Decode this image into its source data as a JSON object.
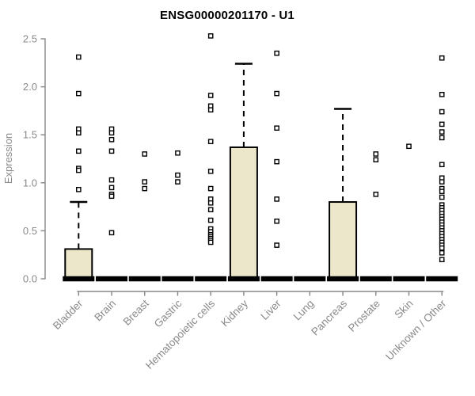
{
  "chart_data": {
    "type": "boxplot",
    "title": "ENSG00000201170 - U1",
    "ylabel": "Expression",
    "xlabel": "",
    "ylim": [
      0,
      2.5
    ],
    "yticks": [
      "0.0",
      "0.5",
      "1.0",
      "1.5",
      "2.0",
      "2.5"
    ],
    "grid": false,
    "legend": "none",
    "categories": [
      "Bladder",
      "Brain",
      "Breast",
      "Gastric",
      "Hematopoietic cells",
      "Kidney",
      "Liver",
      "Lung",
      "Pancreas",
      "Prostate",
      "Skin",
      "Unknown / Other"
    ],
    "boxes": [
      {
        "category": "Bladder",
        "q1": 0,
        "median": 0,
        "q3": 0.31,
        "whisker_low": 0,
        "whisker_high": 0.8,
        "outliers": [
          2.31,
          1.93,
          1.56,
          1.52,
          1.33,
          1.15,
          1.13,
          0.93
        ]
      },
      {
        "category": "Brain",
        "q1": 0,
        "median": 0,
        "q3": 0,
        "whisker_low": 0,
        "whisker_high": 0,
        "outliers": [
          1.56,
          1.52,
          1.45,
          1.33,
          1.03,
          0.95,
          0.88,
          0.86,
          0.48
        ]
      },
      {
        "category": "Breast",
        "q1": 0,
        "median": 0,
        "q3": 0,
        "whisker_low": 0,
        "whisker_high": 0,
        "outliers": [
          1.3,
          1.01,
          0.94
        ]
      },
      {
        "category": "Gastric",
        "q1": 0,
        "median": 0,
        "q3": 0,
        "whisker_low": 0,
        "whisker_high": 0,
        "outliers": [
          1.31,
          1.08,
          1.01
        ]
      },
      {
        "category": "Hematopoietic cells",
        "q1": 0,
        "median": 0,
        "q3": 0,
        "whisker_low": 0,
        "whisker_high": 0,
        "outliers": [
          2.53,
          1.91,
          1.8,
          1.76,
          1.43,
          1.12,
          0.94,
          0.83,
          0.79,
          0.72,
          0.61,
          0.52,
          0.49,
          0.46,
          0.44,
          0.42,
          0.4,
          0.38
        ]
      },
      {
        "category": "Kidney",
        "q1": 0,
        "median": 0,
        "q3": 1.37,
        "whisker_low": 0,
        "whisker_high": 2.24,
        "outliers": []
      },
      {
        "category": "Liver",
        "q1": 0,
        "median": 0,
        "q3": 0,
        "whisker_low": 0,
        "whisker_high": 0,
        "outliers": [
          2.35,
          1.93,
          1.57,
          1.22,
          0.83,
          0.6,
          0.35
        ]
      },
      {
        "category": "Lung",
        "q1": 0,
        "median": 0,
        "q3": 0,
        "whisker_low": 0,
        "whisker_high": 0,
        "outliers": []
      },
      {
        "category": "Pancreas",
        "q1": 0,
        "median": 0,
        "q3": 0.8,
        "whisker_low": 0,
        "whisker_high": 1.77,
        "outliers": []
      },
      {
        "category": "Prostate",
        "q1": 0,
        "median": 0,
        "q3": 0,
        "whisker_low": 0,
        "whisker_high": 0,
        "outliers": [
          1.3,
          1.24,
          0.88
        ]
      },
      {
        "category": "Skin",
        "q1": 0,
        "median": 0,
        "q3": 0,
        "whisker_low": 0,
        "whisker_high": 0,
        "outliers": [
          1.38
        ]
      },
      {
        "category": "Unknown / Other",
        "q1": 0,
        "median": 0,
        "q3": 0,
        "whisker_low": 0,
        "whisker_high": 0,
        "outliers": [
          2.3,
          1.92,
          1.74,
          1.61,
          1.53,
          1.47,
          1.19,
          1.05,
          1.01,
          0.94,
          0.91,
          0.85,
          0.77,
          0.74,
          0.71,
          0.68,
          0.65,
          0.62,
          0.59,
          0.56,
          0.53,
          0.5,
          0.47,
          0.44,
          0.41,
          0.38,
          0.35,
          0.32,
          0.27,
          0.2
        ]
      }
    ],
    "colors": {
      "box_fill": "#ece7ca",
      "box_stroke": "#000000",
      "median": "#000000",
      "outlier_stroke": "#000000",
      "outlier_fill": "#ffffff",
      "axis": "#878787",
      "tick_label": "#8a8a8a",
      "title": "#000000",
      "background": "#ffffff"
    }
  }
}
